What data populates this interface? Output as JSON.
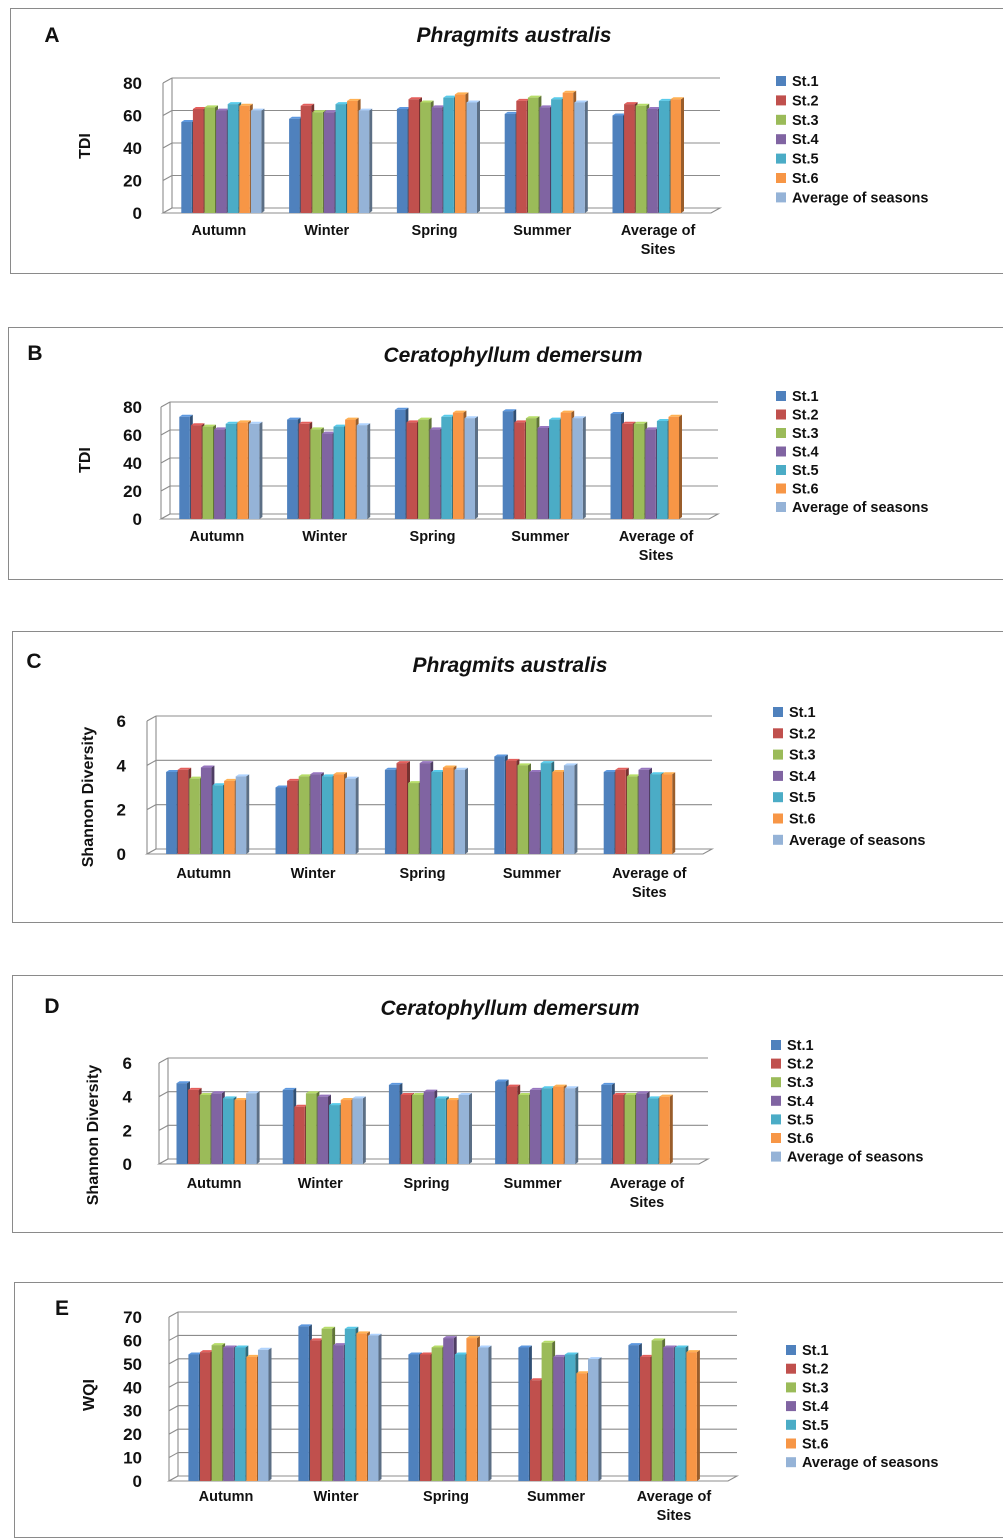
{
  "colors": {
    "St.1": "#4f81bd",
    "St.2": "#c0504d",
    "St.3": "#9bbb59",
    "St.4": "#8064a2",
    "St.5": "#4bacc6",
    "St.6": "#f79646",
    "Average of seasons": "#95b3d7"
  },
  "chart_data": [
    {
      "panel": "A",
      "type": "bar",
      "title": "Phragmits  australis",
      "xlabel": "",
      "ylabel": "TDI",
      "ylim": [
        0,
        80
      ],
      "yticks": [
        "0",
        "20",
        "40",
        "60",
        "80"
      ],
      "grid": true,
      "legend": "right",
      "categories": [
        "Autumn",
        "Winter",
        "Spring",
        "Summer",
        "Average of Sites"
      ],
      "series": [
        {
          "name": "St.1",
          "values": [
            56,
            58,
            64,
            61,
            60
          ]
        },
        {
          "name": "St.2",
          "values": [
            64,
            66,
            70,
            69,
            67
          ]
        },
        {
          "name": "St.3",
          "values": [
            65,
            62,
            68,
            71,
            66
          ]
        },
        {
          "name": "St.4",
          "values": [
            63,
            62,
            65,
            65,
            64
          ]
        },
        {
          "name": "St.5",
          "values": [
            67,
            67,
            71,
            70,
            69
          ]
        },
        {
          "name": "St.6",
          "values": [
            66,
            69,
            73,
            74,
            70
          ]
        },
        {
          "name": "Average of seasons",
          "values": [
            63,
            63,
            68,
            68,
            null
          ]
        }
      ]
    },
    {
      "panel": "B",
      "type": "bar",
      "title": "Ceratophyllum demersum",
      "xlabel": "",
      "ylabel": "TDI",
      "ylim": [
        0,
        80
      ],
      "yticks": [
        "0",
        "20",
        "40",
        "60",
        "80"
      ],
      "grid": true,
      "legend": "right",
      "categories": [
        "Autumn",
        "Winter",
        "Spring",
        "Summer",
        "Average of Sites"
      ],
      "series": [
        {
          "name": "St.1",
          "values": [
            73,
            71,
            78,
            77,
            75
          ]
        },
        {
          "name": "St.2",
          "values": [
            67,
            68,
            69,
            69,
            68
          ]
        },
        {
          "name": "St.3",
          "values": [
            66,
            64,
            71,
            72,
            68
          ]
        },
        {
          "name": "St.4",
          "values": [
            64,
            61,
            64,
            65,
            64
          ]
        },
        {
          "name": "St.5",
          "values": [
            68,
            66,
            73,
            71,
            70
          ]
        },
        {
          "name": "St.6",
          "values": [
            69,
            71,
            76,
            76,
            73
          ]
        },
        {
          "name": "Average of seasons",
          "values": [
            68,
            67,
            72,
            72,
            null
          ]
        }
      ]
    },
    {
      "panel": "C",
      "type": "bar",
      "title": "Phragmits australis",
      "xlabel": "",
      "ylabel": "Shannon Diversity",
      "ylim": [
        0,
        6
      ],
      "yticks": [
        "0",
        "2",
        "4",
        "6"
      ],
      "grid": true,
      "legend": "right",
      "categories": [
        "Autumn",
        "Winter",
        "Spring",
        "Summer",
        "Average of Sites"
      ],
      "series": [
        {
          "name": "St.1",
          "values": [
            3.7,
            3.0,
            3.8,
            4.4,
            3.7
          ]
        },
        {
          "name": "St.2",
          "values": [
            3.8,
            3.3,
            4.1,
            4.2,
            3.8
          ]
        },
        {
          "name": "St.3",
          "values": [
            3.4,
            3.5,
            3.2,
            4.0,
            3.5
          ]
        },
        {
          "name": "St.4",
          "values": [
            3.9,
            3.6,
            4.1,
            3.7,
            3.8
          ]
        },
        {
          "name": "St.5",
          "values": [
            3.1,
            3.5,
            3.7,
            4.1,
            3.6
          ]
        },
        {
          "name": "St.6",
          "values": [
            3.3,
            3.6,
            3.9,
            3.7,
            3.6
          ]
        },
        {
          "name": "Average of seasons",
          "values": [
            3.5,
            3.4,
            3.8,
            4.0,
            null
          ]
        }
      ]
    },
    {
      "panel": "D",
      "type": "bar",
      "title": "Ceratophyllum demersum",
      "xlabel": "",
      "ylabel": "Shannon Diversity",
      "ylim": [
        0,
        6
      ],
      "yticks": [
        "0",
        "2",
        "4",
        "6"
      ],
      "grid": true,
      "legend": "right",
      "categories": [
        "Autumn",
        "Winter",
        "Spring",
        "Summer",
        "Average of Sites"
      ],
      "series": [
        {
          "name": "St.1",
          "values": [
            4.8,
            4.4,
            4.7,
            4.9,
            4.7
          ]
        },
        {
          "name": "St.2",
          "values": [
            4.4,
            3.4,
            4.1,
            4.6,
            4.1
          ]
        },
        {
          "name": "St.3",
          "values": [
            4.1,
            4.2,
            4.1,
            4.1,
            4.1
          ]
        },
        {
          "name": "St.4",
          "values": [
            4.2,
            4.0,
            4.3,
            4.4,
            4.2
          ]
        },
        {
          "name": "St.5",
          "values": [
            3.9,
            3.5,
            3.9,
            4.5,
            3.9
          ]
        },
        {
          "name": "St.6",
          "values": [
            3.8,
            3.8,
            3.8,
            4.6,
            4.0
          ]
        },
        {
          "name": "Average of seasons",
          "values": [
            4.2,
            3.9,
            4.1,
            4.5,
            null
          ]
        }
      ]
    },
    {
      "panel": "E",
      "type": "bar",
      "title": "",
      "xlabel": "",
      "ylabel": "WQI",
      "ylim": [
        0,
        70
      ],
      "yticks": [
        "0",
        "10",
        "20",
        "30",
        "40",
        "50",
        "60",
        "70"
      ],
      "grid": true,
      "legend": "right",
      "categories": [
        "Autumn",
        "Winter",
        "Spring",
        "Summer",
        "Average of Sites"
      ],
      "series": [
        {
          "name": "St.1",
          "values": [
            54,
            66,
            54,
            57,
            58
          ]
        },
        {
          "name": "St.2",
          "values": [
            55,
            60,
            54,
            43,
            53
          ]
        },
        {
          "name": "St.3",
          "values": [
            58,
            65,
            57,
            59,
            60
          ]
        },
        {
          "name": "St.4",
          "values": [
            57,
            58,
            61,
            53,
            57
          ]
        },
        {
          "name": "St.5",
          "values": [
            57,
            65,
            54,
            54,
            57
          ]
        },
        {
          "name": "St.6",
          "values": [
            53,
            63,
            61,
            46,
            55
          ]
        },
        {
          "name": "Average of seasons",
          "values": [
            56,
            62,
            57,
            52,
            null
          ]
        }
      ]
    }
  ]
}
